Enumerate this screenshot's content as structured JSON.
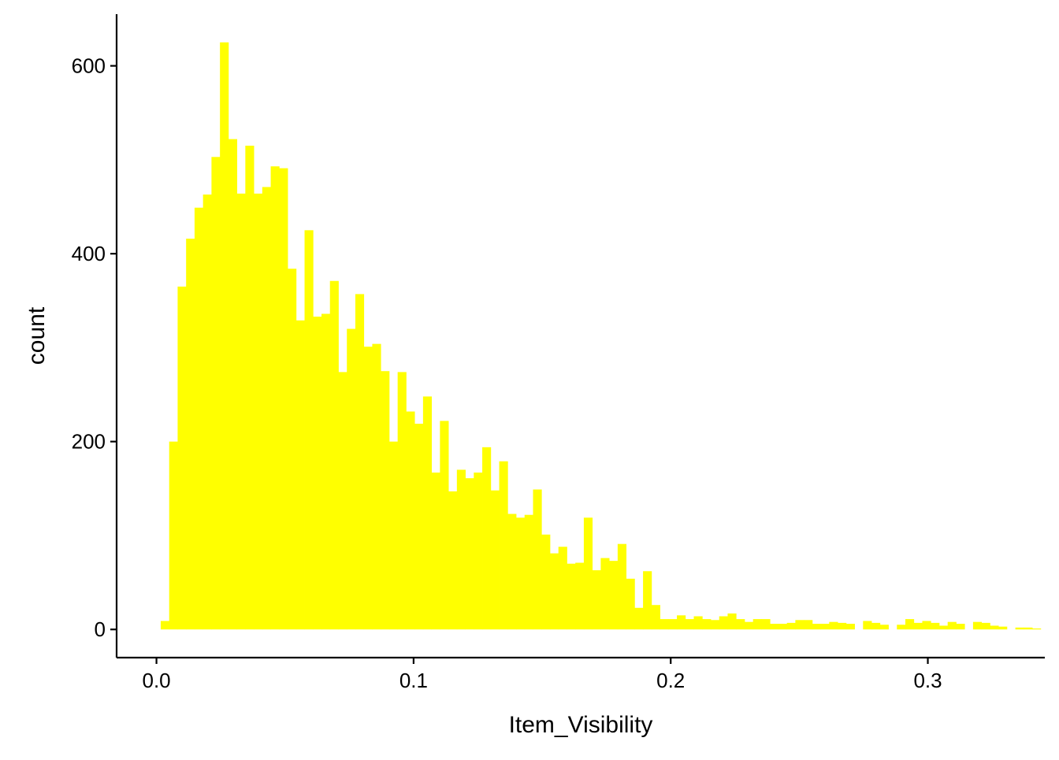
{
  "chart_data": {
    "type": "bar",
    "title": "",
    "xlabel": "Item_Visibility",
    "ylabel": "count",
    "bar_color": "#FFFF00",
    "xlim": [
      -0.0155,
      0.3455
    ],
    "ylim": [
      -30,
      655
    ],
    "x_ticks": [
      0.0,
      0.1,
      0.2,
      0.3
    ],
    "x_tick_labels": [
      "0.0",
      "0.1",
      "0.2",
      "0.3"
    ],
    "y_ticks": [
      0,
      200,
      400,
      600
    ],
    "y_tick_labels": [
      "0",
      "200",
      "400",
      "600"
    ],
    "bin_width": 0.003291,
    "bins_start": 0.00165,
    "grid": false,
    "legend": "none",
    "counts": [
      9,
      200,
      365,
      416,
      449,
      463,
      503,
      625,
      522,
      464,
      515,
      464,
      471,
      493,
      491,
      384,
      329,
      425,
      333,
      336,
      371,
      274,
      320,
      357,
      301,
      304,
      275,
      200,
      274,
      232,
      219,
      248,
      167,
      222,
      147,
      170,
      161,
      167,
      194,
      148,
      179,
      123,
      119,
      122,
      149,
      101,
      81,
      88,
      70,
      71,
      119,
      63,
      76,
      73,
      91,
      54,
      23,
      62,
      26,
      11,
      11,
      15,
      11,
      14,
      11,
      10,
      14,
      17,
      11,
      8,
      11,
      11,
      6,
      6,
      7,
      10,
      10,
      6,
      6,
      8,
      7,
      6,
      0,
      9,
      7,
      5,
      0,
      5,
      11,
      7,
      9,
      7,
      4,
      8,
      6,
      0,
      8,
      7,
      4,
      3,
      0,
      2,
      2,
      1,
      0
    ]
  }
}
